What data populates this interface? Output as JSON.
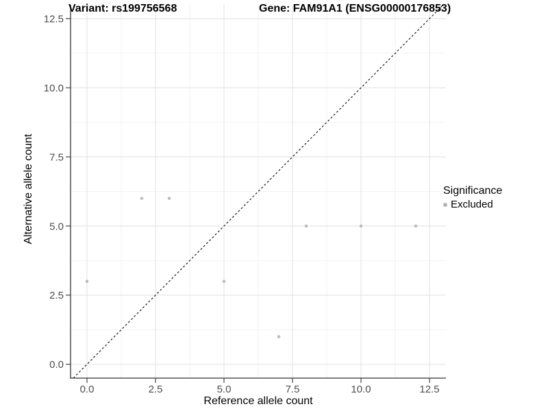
{
  "chart_data": {
    "type": "scatter",
    "title_left": "Variant: rs199756568",
    "title_right": "Gene: FAM91A1 (ENSG00000176853)",
    "xlabel": "Reference allele count",
    "ylabel": "Alternative allele count",
    "xlim": [
      -0.6,
      13.1
    ],
    "ylim": [
      -0.5,
      13.0
    ],
    "x_ticks": [
      0.0,
      2.5,
      5.0,
      7.5,
      10.0,
      12.5
    ],
    "x_tick_labels": [
      "0.0",
      "2.5",
      "5.0",
      "7.5",
      "10.0",
      "12.5"
    ],
    "y_ticks": [
      0.0,
      2.5,
      5.0,
      7.5,
      10.0,
      12.5
    ],
    "y_tick_labels": [
      "0.0",
      "2.5",
      "5.0",
      "7.5",
      "10.0",
      "12.5"
    ],
    "grid_minor": [
      1.25,
      3.75,
      6.25,
      8.75,
      11.25
    ],
    "grid": "major+minor",
    "series": [
      {
        "name": "Excluded",
        "color": "#bdbdbd",
        "point_radius": 2.3,
        "points": [
          [
            0,
            3
          ],
          [
            2,
            6
          ],
          [
            3,
            6
          ],
          [
            5,
            3
          ],
          [
            7,
            1
          ],
          [
            8,
            5
          ],
          [
            10,
            5
          ],
          [
            12,
            5
          ]
        ]
      }
    ],
    "reference_line": {
      "type": "identity",
      "slope": 1,
      "intercept": 0,
      "style": "dashed",
      "color": "#1a1a1a"
    },
    "legend": {
      "position": "right",
      "title": "Significance",
      "items": [
        {
          "label": "Excluded",
          "color": "#b3b3b3"
        }
      ]
    },
    "colors": {
      "background": "#ffffff",
      "grid_major": "#e5e5e5",
      "grid_minor": "#f2f2f2",
      "axis_line": "#333333",
      "tick_mark": "#333333",
      "tick_label": "#4d4d4d",
      "point": "#bdbdbd"
    }
  }
}
